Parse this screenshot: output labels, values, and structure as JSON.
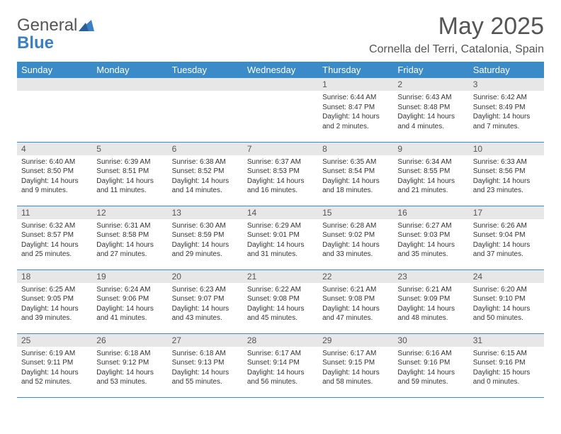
{
  "logo": {
    "word1": "General",
    "word2": "Blue"
  },
  "title": "May 2025",
  "location": "Cornella del Terri, Catalonia, Spain",
  "colors": {
    "header_bg": "#3b8bc9",
    "header_text": "#ffffff",
    "daynum_bg": "#e7e7e7",
    "border": "#3b8bc9",
    "body_text": "#333333",
    "logo_blue": "#3b7fc4"
  },
  "weekdays": [
    "Sunday",
    "Monday",
    "Tuesday",
    "Wednesday",
    "Thursday",
    "Friday",
    "Saturday"
  ],
  "weeks": [
    [
      {
        "n": "",
        "sunrise": "",
        "sunset": "",
        "day1": "",
        "day2": ""
      },
      {
        "n": "",
        "sunrise": "",
        "sunset": "",
        "day1": "",
        "day2": ""
      },
      {
        "n": "",
        "sunrise": "",
        "sunset": "",
        "day1": "",
        "day2": ""
      },
      {
        "n": "",
        "sunrise": "",
        "sunset": "",
        "day1": "",
        "day2": ""
      },
      {
        "n": "1",
        "sunrise": "Sunrise: 6:44 AM",
        "sunset": "Sunset: 8:47 PM",
        "day1": "Daylight: 14 hours",
        "day2": "and 2 minutes."
      },
      {
        "n": "2",
        "sunrise": "Sunrise: 6:43 AM",
        "sunset": "Sunset: 8:48 PM",
        "day1": "Daylight: 14 hours",
        "day2": "and 4 minutes."
      },
      {
        "n": "3",
        "sunrise": "Sunrise: 6:42 AM",
        "sunset": "Sunset: 8:49 PM",
        "day1": "Daylight: 14 hours",
        "day2": "and 7 minutes."
      }
    ],
    [
      {
        "n": "4",
        "sunrise": "Sunrise: 6:40 AM",
        "sunset": "Sunset: 8:50 PM",
        "day1": "Daylight: 14 hours",
        "day2": "and 9 minutes."
      },
      {
        "n": "5",
        "sunrise": "Sunrise: 6:39 AM",
        "sunset": "Sunset: 8:51 PM",
        "day1": "Daylight: 14 hours",
        "day2": "and 11 minutes."
      },
      {
        "n": "6",
        "sunrise": "Sunrise: 6:38 AM",
        "sunset": "Sunset: 8:52 PM",
        "day1": "Daylight: 14 hours",
        "day2": "and 14 minutes."
      },
      {
        "n": "7",
        "sunrise": "Sunrise: 6:37 AM",
        "sunset": "Sunset: 8:53 PM",
        "day1": "Daylight: 14 hours",
        "day2": "and 16 minutes."
      },
      {
        "n": "8",
        "sunrise": "Sunrise: 6:35 AM",
        "sunset": "Sunset: 8:54 PM",
        "day1": "Daylight: 14 hours",
        "day2": "and 18 minutes."
      },
      {
        "n": "9",
        "sunrise": "Sunrise: 6:34 AM",
        "sunset": "Sunset: 8:55 PM",
        "day1": "Daylight: 14 hours",
        "day2": "and 21 minutes."
      },
      {
        "n": "10",
        "sunrise": "Sunrise: 6:33 AM",
        "sunset": "Sunset: 8:56 PM",
        "day1": "Daylight: 14 hours",
        "day2": "and 23 minutes."
      }
    ],
    [
      {
        "n": "11",
        "sunrise": "Sunrise: 6:32 AM",
        "sunset": "Sunset: 8:57 PM",
        "day1": "Daylight: 14 hours",
        "day2": "and 25 minutes."
      },
      {
        "n": "12",
        "sunrise": "Sunrise: 6:31 AM",
        "sunset": "Sunset: 8:58 PM",
        "day1": "Daylight: 14 hours",
        "day2": "and 27 minutes."
      },
      {
        "n": "13",
        "sunrise": "Sunrise: 6:30 AM",
        "sunset": "Sunset: 8:59 PM",
        "day1": "Daylight: 14 hours",
        "day2": "and 29 minutes."
      },
      {
        "n": "14",
        "sunrise": "Sunrise: 6:29 AM",
        "sunset": "Sunset: 9:01 PM",
        "day1": "Daylight: 14 hours",
        "day2": "and 31 minutes."
      },
      {
        "n": "15",
        "sunrise": "Sunrise: 6:28 AM",
        "sunset": "Sunset: 9:02 PM",
        "day1": "Daylight: 14 hours",
        "day2": "and 33 minutes."
      },
      {
        "n": "16",
        "sunrise": "Sunrise: 6:27 AM",
        "sunset": "Sunset: 9:03 PM",
        "day1": "Daylight: 14 hours",
        "day2": "and 35 minutes."
      },
      {
        "n": "17",
        "sunrise": "Sunrise: 6:26 AM",
        "sunset": "Sunset: 9:04 PM",
        "day1": "Daylight: 14 hours",
        "day2": "and 37 minutes."
      }
    ],
    [
      {
        "n": "18",
        "sunrise": "Sunrise: 6:25 AM",
        "sunset": "Sunset: 9:05 PM",
        "day1": "Daylight: 14 hours",
        "day2": "and 39 minutes."
      },
      {
        "n": "19",
        "sunrise": "Sunrise: 6:24 AM",
        "sunset": "Sunset: 9:06 PM",
        "day1": "Daylight: 14 hours",
        "day2": "and 41 minutes."
      },
      {
        "n": "20",
        "sunrise": "Sunrise: 6:23 AM",
        "sunset": "Sunset: 9:07 PM",
        "day1": "Daylight: 14 hours",
        "day2": "and 43 minutes."
      },
      {
        "n": "21",
        "sunrise": "Sunrise: 6:22 AM",
        "sunset": "Sunset: 9:08 PM",
        "day1": "Daylight: 14 hours",
        "day2": "and 45 minutes."
      },
      {
        "n": "22",
        "sunrise": "Sunrise: 6:21 AM",
        "sunset": "Sunset: 9:08 PM",
        "day1": "Daylight: 14 hours",
        "day2": "and 47 minutes."
      },
      {
        "n": "23",
        "sunrise": "Sunrise: 6:21 AM",
        "sunset": "Sunset: 9:09 PM",
        "day1": "Daylight: 14 hours",
        "day2": "and 48 minutes."
      },
      {
        "n": "24",
        "sunrise": "Sunrise: 6:20 AM",
        "sunset": "Sunset: 9:10 PM",
        "day1": "Daylight: 14 hours",
        "day2": "and 50 minutes."
      }
    ],
    [
      {
        "n": "25",
        "sunrise": "Sunrise: 6:19 AM",
        "sunset": "Sunset: 9:11 PM",
        "day1": "Daylight: 14 hours",
        "day2": "and 52 minutes."
      },
      {
        "n": "26",
        "sunrise": "Sunrise: 6:18 AM",
        "sunset": "Sunset: 9:12 PM",
        "day1": "Daylight: 14 hours",
        "day2": "and 53 minutes."
      },
      {
        "n": "27",
        "sunrise": "Sunrise: 6:18 AM",
        "sunset": "Sunset: 9:13 PM",
        "day1": "Daylight: 14 hours",
        "day2": "and 55 minutes."
      },
      {
        "n": "28",
        "sunrise": "Sunrise: 6:17 AM",
        "sunset": "Sunset: 9:14 PM",
        "day1": "Daylight: 14 hours",
        "day2": "and 56 minutes."
      },
      {
        "n": "29",
        "sunrise": "Sunrise: 6:17 AM",
        "sunset": "Sunset: 9:15 PM",
        "day1": "Daylight: 14 hours",
        "day2": "and 58 minutes."
      },
      {
        "n": "30",
        "sunrise": "Sunrise: 6:16 AM",
        "sunset": "Sunset: 9:16 PM",
        "day1": "Daylight: 14 hours",
        "day2": "and 59 minutes."
      },
      {
        "n": "31",
        "sunrise": "Sunrise: 6:15 AM",
        "sunset": "Sunset: 9:16 PM",
        "day1": "Daylight: 15 hours",
        "day2": "and 0 minutes."
      }
    ]
  ]
}
